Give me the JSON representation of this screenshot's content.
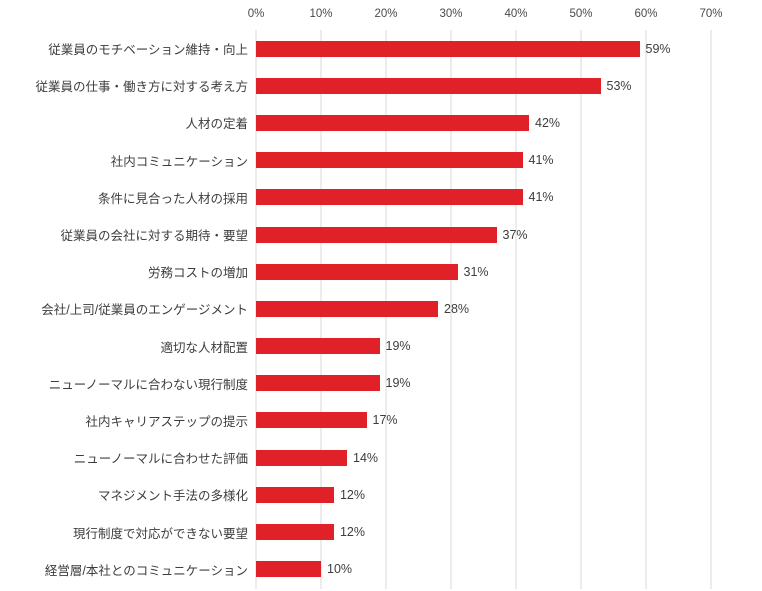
{
  "chart_data": {
    "type": "bar",
    "orientation": "horizontal",
    "title": "",
    "xlabel": "",
    "ylabel": "",
    "xlim": [
      0,
      70
    ],
    "x_ticks": [
      "0%",
      "10%",
      "20%",
      "30%",
      "40%",
      "50%",
      "60%",
      "70%"
    ],
    "grid": true,
    "legend": false,
    "value_suffix": "%",
    "bar_color": "#e02128",
    "gridline_color": "#d9d9d9",
    "categories": [
      "従業員のモチベーション維持・向上",
      "従業員の仕事・働き方に対する考え方",
      "人材の定着",
      "社内コミュニケーション",
      "条件に見合った人材の採用",
      "従業員の会社に対する期待・要望",
      "労務コストの増加",
      "会社/上司/従業員のエンゲージメント",
      "適切な人材配置",
      "ニューノーマルに合わない現行制度",
      "社内キャリアステップの提示",
      "ニューノーマルに合わせた評価",
      "マネジメント手法の多様化",
      "現行制度で対応ができない要望",
      "経営層/本社とのコミュニケーション"
    ],
    "values": [
      59,
      53,
      42,
      41,
      41,
      37,
      31,
      28,
      19,
      19,
      17,
      14,
      12,
      12,
      10
    ]
  }
}
